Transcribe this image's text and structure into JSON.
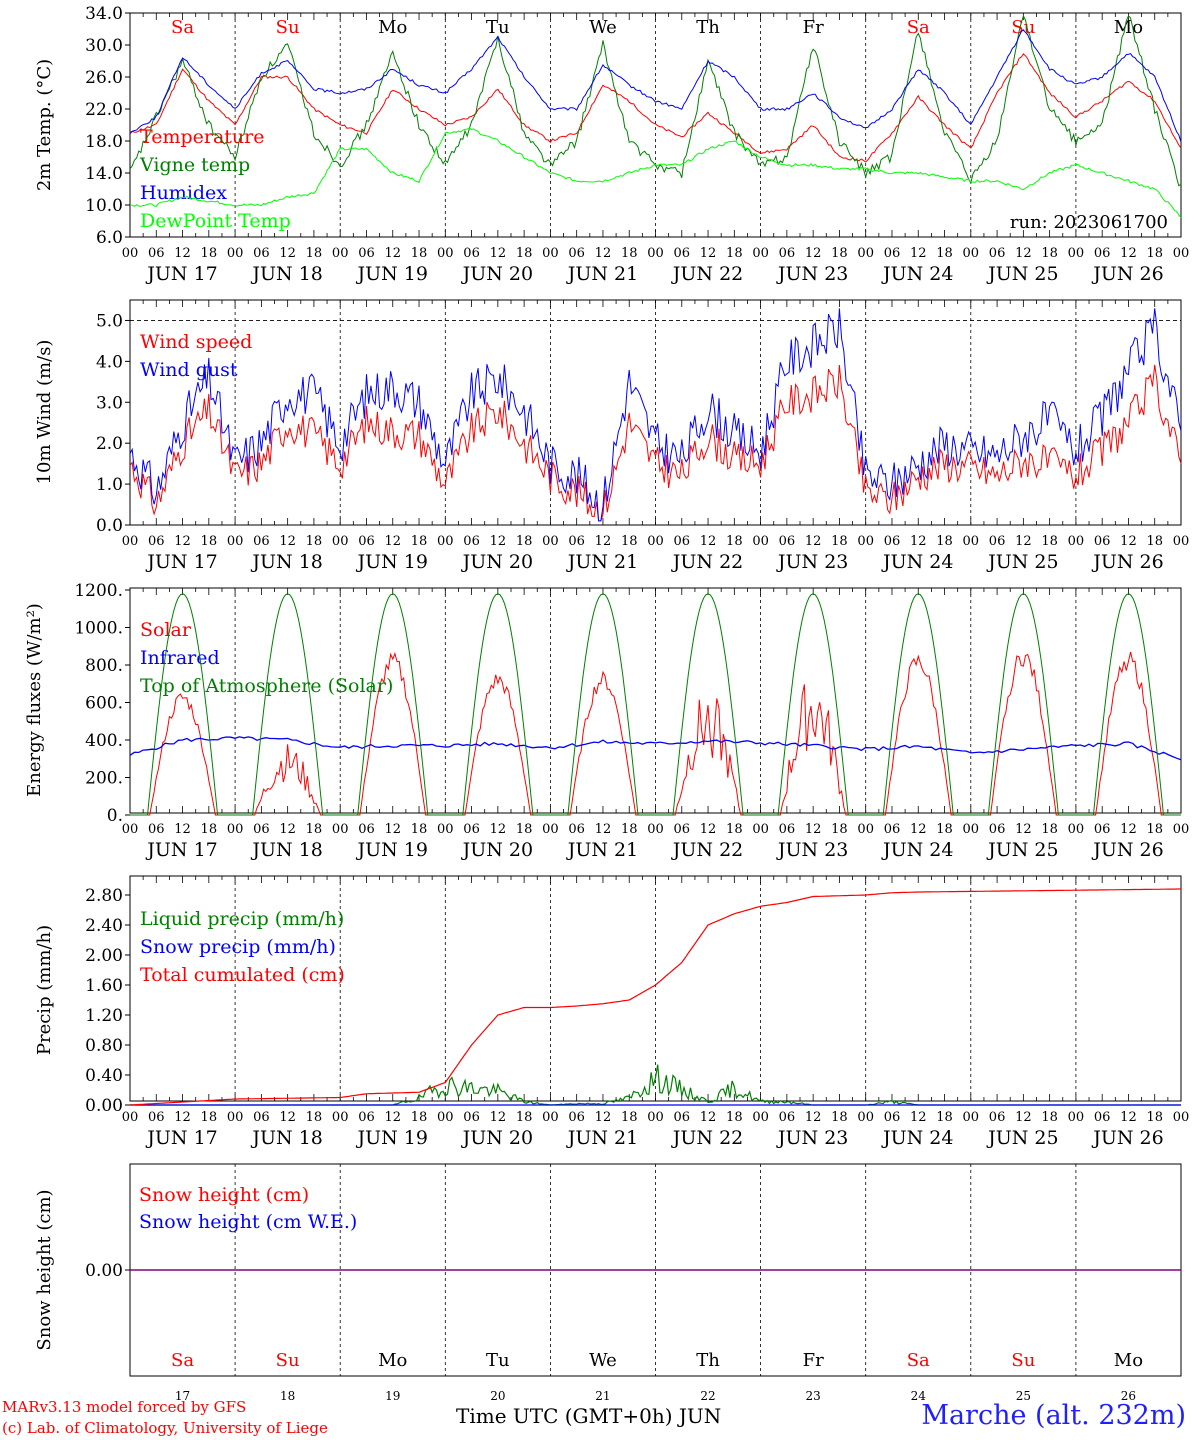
{
  "footer": {
    "model": "MARv3.13 model forced by GFS",
    "credit": "(c) Lab. of Climatology, University of Liege",
    "xaxis_title": "Time UTC (GMT+0h)",
    "month": "JUN",
    "station": "Marche (alt. 232m)"
  },
  "colors": {
    "red": "#ff0000",
    "green": "#008000",
    "blue": "#0000ff",
    "lime": "#00ff00",
    "purple": "#800080"
  },
  "days": [
    "17",
    "18",
    "19",
    "20",
    "21",
    "22",
    "23",
    "24",
    "25",
    "26"
  ],
  "day_labels": [
    "JUN 17",
    "JUN 18",
    "JUN 19",
    "JUN 20",
    "JUN 21",
    "JUN 22",
    "JUN 23",
    "JUN 24",
    "JUN 25",
    "JUN 26"
  ],
  "weekdays": [
    "Sa",
    "Su",
    "Mo",
    "Tu",
    "We",
    "Th",
    "Fr",
    "Sa",
    "Su",
    "Mo"
  ],
  "weekend_flags": [
    true,
    true,
    false,
    false,
    false,
    false,
    false,
    true,
    true,
    false
  ],
  "hour_ticks": [
    "00",
    "06",
    "12",
    "18"
  ],
  "chart_data": [
    {
      "type": "line",
      "id": "temp",
      "ylabel": "2m Temp. (°C)",
      "ylim": [
        6,
        34
      ],
      "yticks": [
        "6.0",
        "10.0",
        "14.0",
        "18.0",
        "22.0",
        "26.0",
        "30.0",
        "34.0"
      ],
      "annotation": "run: 2023061700",
      "x_unit": "hours since JUN 17 00 UTC",
      "x": [
        0,
        6,
        12,
        18,
        24,
        30,
        36,
        42,
        48,
        54,
        60,
        66,
        72,
        78,
        84,
        90,
        96,
        102,
        108,
        114,
        120,
        126,
        132,
        138,
        144,
        150,
        156,
        162,
        168,
        174,
        180,
        186,
        192,
        198,
        204,
        210,
        216,
        222,
        228,
        234,
        240
      ],
      "series": [
        {
          "name": "Temperature",
          "color": "#ff0000",
          "values": [
            19,
            20,
            27,
            23,
            20,
            26,
            26,
            22,
            20,
            19,
            24.5,
            22,
            20,
            21,
            24.5,
            20,
            18,
            19,
            25,
            23,
            20,
            18.5,
            21.5,
            19,
            16.5,
            17,
            20,
            16,
            15.5,
            19,
            23.5,
            20,
            17,
            24,
            29,
            24,
            21,
            23,
            25.5,
            23,
            17
          ]
        },
        {
          "name": "Vigne temp",
          "color": "#008000",
          "values": [
            14,
            21,
            28,
            20,
            16,
            26,
            30,
            19,
            15,
            20,
            29,
            20,
            15,
            20,
            31,
            19,
            15,
            18,
            30,
            18,
            15,
            14,
            28,
            19,
            15,
            16,
            30,
            18,
            14,
            16,
            32,
            19,
            13,
            18,
            34,
            22,
            18,
            20,
            34,
            22,
            12
          ]
        },
        {
          "name": "Humidex",
          "color": "#0000ff",
          "values": [
            19,
            21,
            28.5,
            25,
            22,
            26.5,
            28,
            24.5,
            24,
            24.5,
            27,
            25,
            24,
            27,
            31,
            26,
            22,
            22,
            27.5,
            25,
            23,
            22,
            28,
            26,
            22,
            22,
            24,
            21,
            19.5,
            22,
            27,
            24,
            20,
            26,
            32,
            27,
            25,
            26,
            29,
            26,
            18
          ]
        },
        {
          "name": "DewPoint Temp",
          "color": "#00ff00",
          "values": [
            10,
            10,
            11,
            10.5,
            10,
            10,
            11,
            11.5,
            17,
            17,
            14,
            13,
            19,
            19.5,
            18,
            16,
            14,
            13,
            13,
            14,
            15,
            15,
            17,
            18,
            16,
            15,
            15,
            14.5,
            14.5,
            14,
            14,
            13.5,
            13,
            13,
            12,
            14,
            15,
            14,
            13,
            12,
            8.5
          ]
        }
      ]
    },
    {
      "type": "line",
      "id": "wind",
      "ylabel": "10m Wind (m/s)",
      "ylim": [
        0,
        5.5
      ],
      "yticks": [
        "0.0",
        "1.0",
        "2.0",
        "3.0",
        "4.0",
        "5.0"
      ],
      "x_unit": "hours since JUN 17 00 UTC",
      "x": [
        0,
        6,
        12,
        18,
        24,
        30,
        36,
        42,
        48,
        54,
        60,
        66,
        72,
        78,
        84,
        90,
        96,
        102,
        108,
        114,
        120,
        126,
        132,
        138,
        144,
        150,
        156,
        162,
        168,
        174,
        180,
        186,
        192,
        198,
        204,
        210,
        216,
        222,
        228,
        234,
        240
      ],
      "series": [
        {
          "name": "Wind speed",
          "color": "#ff0000",
          "values": [
            1.5,
            0.5,
            2,
            2.8,
            1.2,
            1.5,
            2.5,
            2.2,
            1.5,
            2.5,
            2.3,
            2.2,
            1,
            2.3,
            2.8,
            2,
            1.2,
            0.8,
            0.3,
            2.5,
            1.5,
            1.2,
            2.2,
            1.6,
            1.5,
            3,
            3.2,
            3.5,
            0.8,
            0.6,
            1.2,
            1.5,
            1.4,
            1.2,
            1.6,
            1.5,
            1.2,
            1.8,
            2.5,
            3.5,
            1.5
          ]
        },
        {
          "name": "Wind gust",
          "color": "#0000ff",
          "values": [
            1.8,
            0.8,
            2.5,
            3.6,
            1.5,
            2,
            3.2,
            3.2,
            2,
            3.2,
            3.4,
            3,
            1.5,
            3.2,
            3.6,
            2.8,
            1.5,
            1.2,
            0.5,
            3.5,
            2,
            1.6,
            2.9,
            2.2,
            1.8,
            4,
            4.4,
            4.8,
            1.2,
            1,
            1.5,
            2,
            1.8,
            1.7,
            2.2,
            2.6,
            1.8,
            2.6,
            3.8,
            4.8,
            2.3
          ]
        }
      ]
    },
    {
      "type": "line",
      "id": "energy",
      "ylabel": "Energy fluxes (W/m²)",
      "ylim": [
        0,
        1200
      ],
      "yticks": [
        "0.",
        "200.",
        "400.",
        "600.",
        "800.",
        "1000.",
        "1200."
      ],
      "x_unit": "hours since JUN 17 00 UTC",
      "daily_peaks": {
        "Solar": [
          650,
          350,
          850,
          750,
          750,
          620,
          700,
          850,
          880,
          860
        ],
        "Top of Atmosphere (Solar)": [
          1180,
          1180,
          1180,
          1180,
          1180,
          1180,
          1180,
          1180,
          1180,
          1180
        ]
      },
      "series": [
        {
          "name": "Solar",
          "color": "#ff0000"
        },
        {
          "name": "Infrared",
          "color": "#0000ff",
          "x": [
            0,
            12,
            24,
            36,
            48,
            60,
            72,
            84,
            96,
            108,
            120,
            132,
            144,
            156,
            168,
            180,
            192,
            204,
            216,
            228,
            240
          ],
          "values": [
            320,
            400,
            410,
            400,
            360,
            370,
            370,
            380,
            360,
            390,
            380,
            395,
            385,
            370,
            350,
            365,
            330,
            350,
            370,
            380,
            300
          ]
        },
        {
          "name": "Top of Atmosphere (Solar)",
          "color": "#008000"
        }
      ]
    },
    {
      "type": "line",
      "id": "precip",
      "ylabel": "Precip (mm/h)",
      "ylim": [
        0,
        3
      ],
      "yticks": [
        "0.00",
        "0.40",
        "0.80",
        "1.20",
        "1.60",
        "2.00",
        "2.40",
        "2.80"
      ],
      "x_unit": "hours since JUN 17 00 UTC",
      "series": [
        {
          "name": "Liquid precip (mm/h)",
          "color": "#008000",
          "x": [
            0,
            60,
            66,
            72,
            78,
            84,
            90,
            96,
            102,
            108,
            114,
            120,
            132,
            138,
            144,
            150,
            156,
            168,
            174,
            180,
            240
          ],
          "values": [
            0,
            0,
            0.1,
            0.3,
            0.25,
            0.2,
            0.05,
            0,
            0.02,
            0.02,
            0.1,
            0.4,
            0.05,
            0.25,
            0.05,
            0.05,
            0,
            0,
            0.05,
            0,
            0
          ]
        },
        {
          "name": "Snow precip (mm/h)",
          "color": "#0000ff",
          "x": [
            0,
            240
          ],
          "values": [
            0,
            0
          ]
        },
        {
          "name": "Total cumulated (cm)",
          "color": "#ff0000",
          "x": [
            0,
            12,
            24,
            36,
            48,
            54,
            60,
            66,
            72,
            78,
            84,
            90,
            96,
            102,
            108,
            114,
            120,
            126,
            132,
            138,
            144,
            150,
            156,
            168,
            174,
            180,
            240
          ],
          "values": [
            0,
            0.04,
            0.08,
            0.09,
            0.1,
            0.15,
            0.16,
            0.17,
            0.3,
            0.8,
            1.2,
            1.3,
            1.3,
            1.32,
            1.35,
            1.4,
            1.6,
            1.9,
            2.4,
            2.55,
            2.65,
            2.7,
            2.78,
            2.8,
            2.83,
            2.84,
            2.88
          ]
        }
      ]
    },
    {
      "type": "line",
      "id": "snow",
      "ylabel": "Snow height (cm)",
      "ytick": "0.00",
      "x_unit": "hours since JUN 17 00 UTC",
      "series": [
        {
          "name": "Snow height (cm)",
          "color": "#ff0000",
          "x": [
            0,
            240
          ],
          "values": [
            0,
            0
          ]
        },
        {
          "name": "Snow height (cm W.E.)",
          "color": "#0000ff",
          "x": [
            0,
            240
          ],
          "values": [
            0,
            0
          ]
        }
      ]
    }
  ]
}
